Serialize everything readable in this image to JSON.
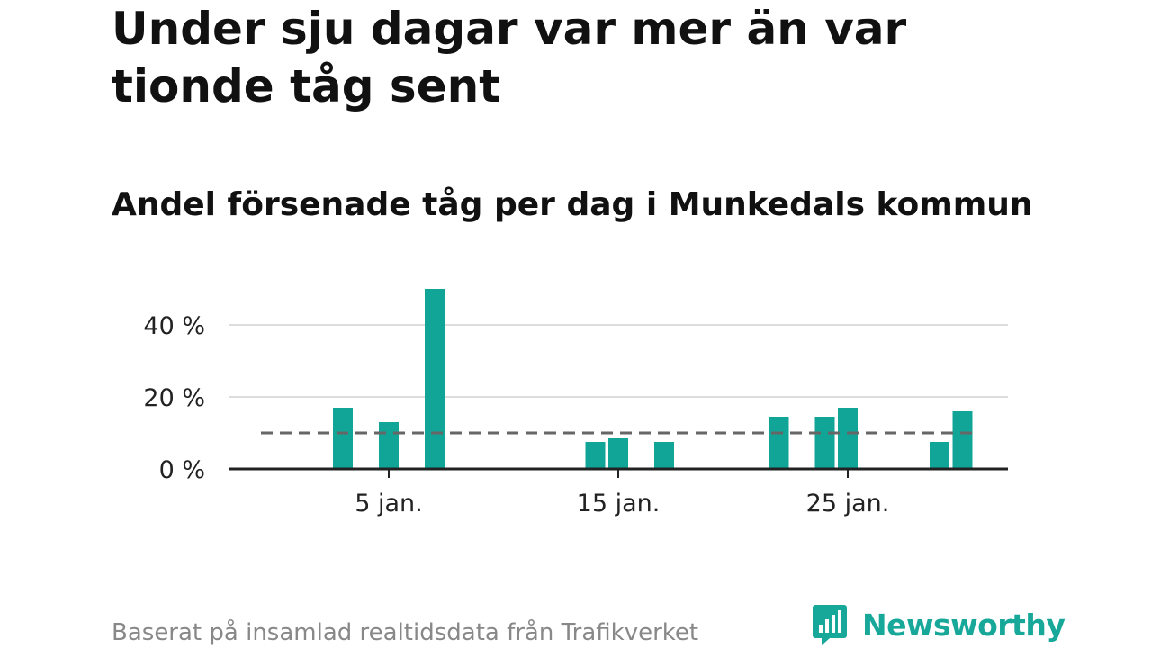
{
  "header": {
    "title": "Under sju dagar var mer än var tionde tåg sent",
    "subtitle": "Andel försenade tåg per dag i Munkedals kommun"
  },
  "footer": {
    "source": "Baserat på insamlad realtidsdata från Trafikverket",
    "brand": "Newsworthy"
  },
  "colors": {
    "bar": "#10a597",
    "reference_line": "#666666",
    "grid": "#dddddd",
    "axis": "#222222",
    "brand": "#17a89a"
  },
  "chart_data": {
    "type": "bar",
    "x_unit": "day of January",
    "x": [
      1,
      2,
      3,
      4,
      5,
      6,
      7,
      8,
      9,
      10,
      11,
      12,
      13,
      14,
      15,
      16,
      17,
      18,
      19,
      20,
      21,
      22,
      23,
      24,
      25,
      26,
      27,
      28,
      29,
      30,
      31
    ],
    "values": [
      null,
      null,
      17,
      null,
      13,
      null,
      50,
      null,
      null,
      null,
      null,
      null,
      null,
      7.5,
      8.5,
      null,
      7.5,
      null,
      null,
      null,
      null,
      14.5,
      null,
      14.5,
      17,
      null,
      null,
      null,
      7.5,
      16,
      null
    ],
    "reference_line": 10,
    "ylim": [
      0,
      50
    ],
    "yticks": [
      0,
      20,
      40
    ],
    "ytick_labels": [
      "0 %",
      "20 %",
      "40 %"
    ],
    "xticks": [
      5,
      15,
      25
    ],
    "xtick_labels": [
      "5 jan.",
      "15 jan.",
      "25 jan."
    ],
    "grid": true,
    "xlabel": "",
    "ylabel": ""
  }
}
